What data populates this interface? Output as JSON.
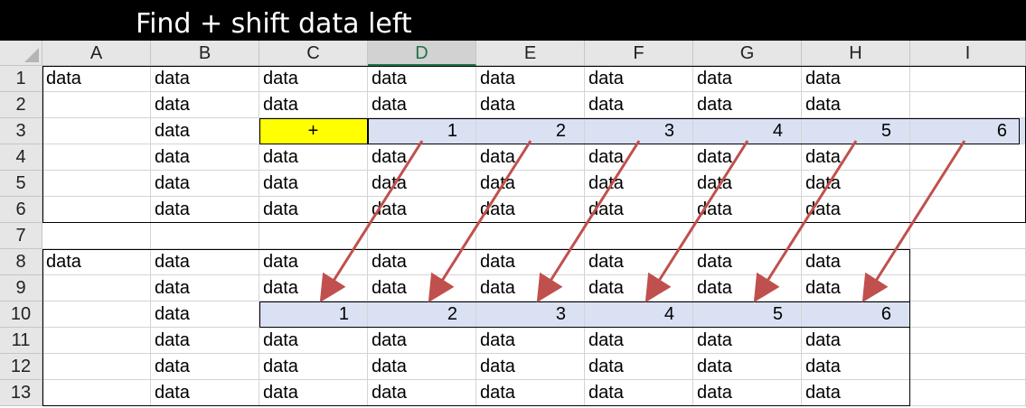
{
  "title": "Find + shift data left",
  "columns": [
    "A",
    "B",
    "C",
    "D",
    "E",
    "F",
    "G",
    "H",
    "I"
  ],
  "selected_column": "D",
  "rows": [
    {
      "num": "1",
      "cells": [
        "data",
        "data",
        "data",
        "data",
        "data",
        "data",
        "data",
        "data",
        ""
      ]
    },
    {
      "num": "2",
      "cells": [
        "",
        "data",
        "data",
        "data",
        "data",
        "data",
        "data",
        "data",
        ""
      ]
    },
    {
      "num": "3",
      "cells": [
        "",
        "data",
        "+",
        "1",
        "2",
        "3",
        "4",
        "5",
        "6"
      ]
    },
    {
      "num": "4",
      "cells": [
        "",
        "data",
        "data",
        "data",
        "data",
        "data",
        "data",
        "data",
        ""
      ]
    },
    {
      "num": "5",
      "cells": [
        "",
        "data",
        "data",
        "data",
        "data",
        "data",
        "data",
        "data",
        ""
      ]
    },
    {
      "num": "6",
      "cells": [
        "",
        "data",
        "data",
        "data",
        "data",
        "data",
        "data",
        "data",
        ""
      ]
    },
    {
      "num": "7",
      "cells": [
        "",
        "",
        "",
        "",
        "",
        "",
        "",
        "",
        ""
      ]
    },
    {
      "num": "8",
      "cells": [
        "data",
        "data",
        "data",
        "data",
        "data",
        "data",
        "data",
        "data",
        ""
      ]
    },
    {
      "num": "9",
      "cells": [
        "",
        "data",
        "data",
        "data",
        "data",
        "data",
        "data",
        "data",
        ""
      ]
    },
    {
      "num": "10",
      "cells": [
        "",
        "data",
        "1",
        "2",
        "3",
        "4",
        "5",
        "6",
        ""
      ]
    },
    {
      "num": "11",
      "cells": [
        "",
        "data",
        "data",
        "data",
        "data",
        "data",
        "data",
        "data",
        ""
      ]
    },
    {
      "num": "12",
      "cells": [
        "",
        "data",
        "data",
        "data",
        "data",
        "data",
        "data",
        "data",
        ""
      ]
    },
    {
      "num": "13",
      "cells": [
        "",
        "data",
        "data",
        "data",
        "data",
        "data",
        "data",
        "data",
        ""
      ]
    }
  ],
  "colors": {
    "highlight": "#ffff00",
    "band": "#dae1f3",
    "arrow": "#c0504d",
    "header": "#e6e6e6",
    "selected_header_text": "#217346"
  }
}
